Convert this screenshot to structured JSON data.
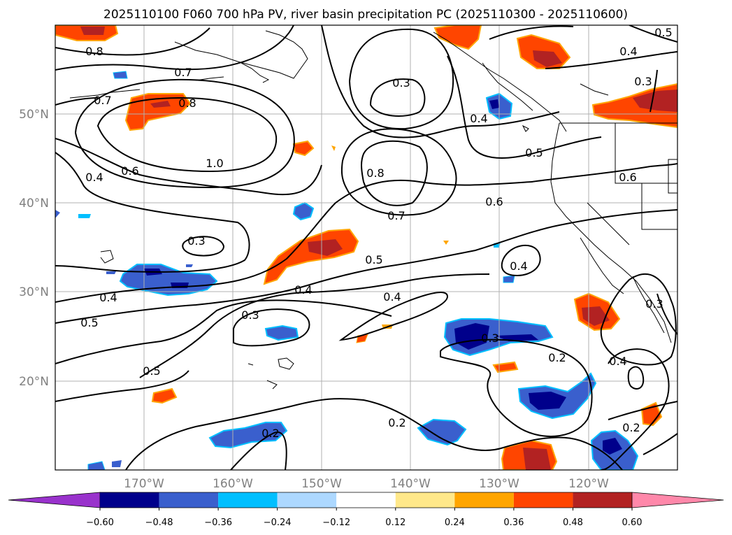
{
  "title": "2025110100 F060 700 hPa PV, river basin precipitation PC (2025110300 - 2025110600)",
  "lat_labels": [
    "50°N",
    "40°N",
    "30°N",
    "20°N"
  ],
  "lon_labels": [
    "170°W",
    "160°W",
    "150°W",
    "140°W",
    "130°W",
    "120°W"
  ],
  "colorbar": {
    "ticks": [
      "−0.60",
      "−0.48",
      "−0.36",
      "−0.24",
      "−0.12",
      "0.12",
      "0.24",
      "0.36",
      "0.48",
      "0.60"
    ],
    "colors": [
      "#9932cc",
      "#00008b",
      "#3a5fcd",
      "#00bfff",
      "#add8ff",
      "#ffffff",
      "#ffe88a",
      "#ffa500",
      "#ff4500",
      "#b22222",
      "#ff88aa"
    ]
  },
  "contour_labels": {
    "l0": "0.8",
    "l1": "0.7",
    "l2": "0.7",
    "l3": "0.8",
    "l4": "1.0",
    "l5": "0.6",
    "l6": "0.4",
    "l7": "0.3",
    "l8": "0.8",
    "l9": "0.7",
    "l10": "0.4",
    "l11": "0.5",
    "l12": "0.6",
    "l13": "0.6",
    "l14": "0.4",
    "l15": "0.3",
    "l16": "0.3",
    "l17": "0.4",
    "l18": "0.5",
    "l19": "0.4",
    "l20": "0.5",
    "l21": "0.3",
    "l22": "0.4",
    "l23": "0.3",
    "l24": "0.2",
    "l25": "0.5",
    "l26": "0.4",
    "l27": "0.2",
    "l28": "0.2",
    "l29": "0.2",
    "l30": "0.5",
    "l31": "0.3"
  }
}
